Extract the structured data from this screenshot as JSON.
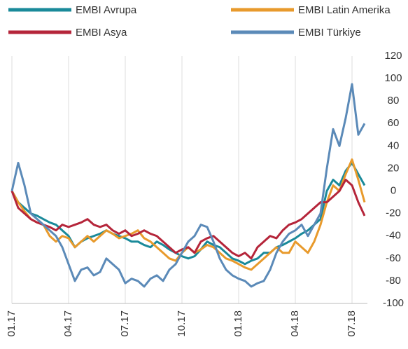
{
  "chart_data": {
    "type": "line",
    "categories": [
      "01.17",
      null,
      null,
      null,
      null,
      null,
      null,
      null,
      null,
      "04.17",
      null,
      null,
      null,
      null,
      null,
      null,
      null,
      null,
      "07.17",
      null,
      null,
      null,
      null,
      null,
      null,
      null,
      null,
      "10.17",
      null,
      null,
      null,
      null,
      null,
      null,
      null,
      null,
      "01.18",
      null,
      null,
      null,
      null,
      null,
      null,
      null,
      null,
      "04.18",
      null,
      null,
      null,
      null,
      null,
      null,
      null,
      null,
      "07.18",
      null,
      null
    ],
    "series": [
      {
        "name": "EMBI Avrupa",
        "color": "#1a8a9a",
        "values": [
          0,
          -10,
          -15,
          -20,
          -22,
          -25,
          -28,
          -30,
          -35,
          -40,
          -50,
          -45,
          -42,
          -40,
          -38,
          -35,
          -38,
          -40,
          -42,
          -45,
          -45,
          -48,
          -50,
          -45,
          -48,
          -52,
          -55,
          -58,
          -60,
          -58,
          -52,
          -45,
          -48,
          -50,
          -55,
          -60,
          -62,
          -65,
          -62,
          -60,
          -55,
          -55,
          -50,
          -48,
          -45,
          -42,
          -38,
          -35,
          -30,
          -25,
          0,
          10,
          5,
          18,
          25,
          15,
          5
        ]
      },
      {
        "name": "EMBI Latin Amerika",
        "color": "#e89a2c",
        "values": [
          0,
          -10,
          -18,
          -25,
          -28,
          -30,
          -40,
          -45,
          -40,
          -42,
          -50,
          -45,
          -40,
          -45,
          -40,
          -35,
          -38,
          -42,
          -40,
          -38,
          -35,
          -42,
          -45,
          -50,
          -55,
          -60,
          -62,
          -55,
          -50,
          -55,
          -52,
          -48,
          -50,
          -55,
          -60,
          -62,
          -65,
          -68,
          -70,
          -65,
          -60,
          -55,
          -50,
          -55,
          -55,
          -45,
          -50,
          -55,
          -45,
          -30,
          -10,
          5,
          0,
          15,
          28,
          10,
          -10
        ]
      },
      {
        "name": "EMBI Asya",
        "color": "#b5253a",
        "values": [
          0,
          -15,
          -20,
          -25,
          -28,
          -30,
          -32,
          -35,
          -30,
          -32,
          -30,
          -28,
          -25,
          -30,
          -32,
          -30,
          -35,
          -38,
          -35,
          -40,
          -38,
          -35,
          -38,
          -40,
          -45,
          -50,
          -55,
          -52,
          -50,
          -55,
          -45,
          -42,
          -40,
          -45,
          -50,
          -55,
          -58,
          -55,
          -60,
          -50,
          -45,
          -40,
          -42,
          -35,
          -30,
          -28,
          -25,
          -20,
          -15,
          -10,
          -10,
          -5,
          0,
          10,
          5,
          -10,
          -22
        ]
      },
      {
        "name": "EMBI Türkiye",
        "color": "#5b8ab8",
        "values": [
          0,
          25,
          5,
          -20,
          -25,
          -30,
          -35,
          -40,
          -50,
          -65,
          -80,
          -70,
          -68,
          -75,
          -72,
          -60,
          -65,
          -70,
          -82,
          -78,
          -80,
          -85,
          -78,
          -75,
          -80,
          -70,
          -65,
          -55,
          -45,
          -40,
          -30,
          -32,
          -45,
          -60,
          -70,
          -75,
          -78,
          -80,
          -85,
          -82,
          -80,
          -70,
          -55,
          -45,
          -38,
          -35,
          -30,
          -40,
          -30,
          -20,
          20,
          55,
          40,
          65,
          95,
          50,
          60
        ]
      }
    ],
    "ylim": [
      -100,
      120
    ],
    "yticks": [
      -100,
      -80,
      -60,
      -40,
      -20,
      0,
      20,
      40,
      60,
      80,
      100,
      120
    ],
    "grid": true
  }
}
